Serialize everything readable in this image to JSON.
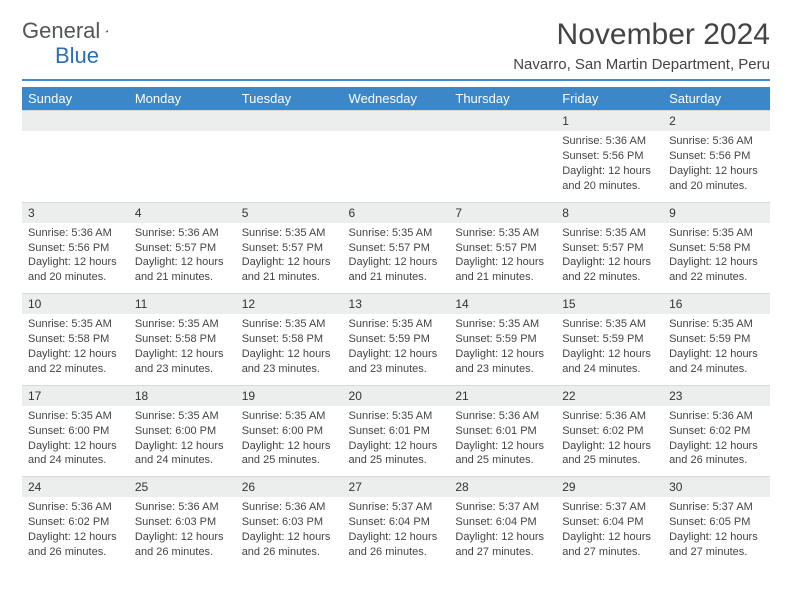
{
  "logo": {
    "text1": "General",
    "text2": "Blue"
  },
  "header": {
    "month_title": "November 2024",
    "location": "Navarro, San Martin Department, Peru"
  },
  "colors": {
    "header_bar": "#3b87c8",
    "header_text": "#ffffff",
    "rule": "#4a88c7",
    "daynum_bg": "#eceded",
    "text": "#444444",
    "logo_gray": "#555555",
    "logo_blue": "#2a6fb5"
  },
  "typography": {
    "month_title_size": 30,
    "location_size": 15,
    "dayhead_size": 13,
    "body_size": 11
  },
  "day_names": [
    "Sunday",
    "Monday",
    "Tuesday",
    "Wednesday",
    "Thursday",
    "Friday",
    "Saturday"
  ],
  "weeks": [
    {
      "nums": [
        "",
        "",
        "",
        "",
        "",
        "1",
        "2"
      ],
      "cells": [
        null,
        null,
        null,
        null,
        null,
        {
          "sunrise": "Sunrise: 5:36 AM",
          "sunset": "Sunset: 5:56 PM",
          "day1": "Daylight: 12 hours",
          "day2": "and 20 minutes."
        },
        {
          "sunrise": "Sunrise: 5:36 AM",
          "sunset": "Sunset: 5:56 PM",
          "day1": "Daylight: 12 hours",
          "day2": "and 20 minutes."
        }
      ]
    },
    {
      "nums": [
        "3",
        "4",
        "5",
        "6",
        "7",
        "8",
        "9"
      ],
      "cells": [
        {
          "sunrise": "Sunrise: 5:36 AM",
          "sunset": "Sunset: 5:56 PM",
          "day1": "Daylight: 12 hours",
          "day2": "and 20 minutes."
        },
        {
          "sunrise": "Sunrise: 5:36 AM",
          "sunset": "Sunset: 5:57 PM",
          "day1": "Daylight: 12 hours",
          "day2": "and 21 minutes."
        },
        {
          "sunrise": "Sunrise: 5:35 AM",
          "sunset": "Sunset: 5:57 PM",
          "day1": "Daylight: 12 hours",
          "day2": "and 21 minutes."
        },
        {
          "sunrise": "Sunrise: 5:35 AM",
          "sunset": "Sunset: 5:57 PM",
          "day1": "Daylight: 12 hours",
          "day2": "and 21 minutes."
        },
        {
          "sunrise": "Sunrise: 5:35 AM",
          "sunset": "Sunset: 5:57 PM",
          "day1": "Daylight: 12 hours",
          "day2": "and 21 minutes."
        },
        {
          "sunrise": "Sunrise: 5:35 AM",
          "sunset": "Sunset: 5:57 PM",
          "day1": "Daylight: 12 hours",
          "day2": "and 22 minutes."
        },
        {
          "sunrise": "Sunrise: 5:35 AM",
          "sunset": "Sunset: 5:58 PM",
          "day1": "Daylight: 12 hours",
          "day2": "and 22 minutes."
        }
      ]
    },
    {
      "nums": [
        "10",
        "11",
        "12",
        "13",
        "14",
        "15",
        "16"
      ],
      "cells": [
        {
          "sunrise": "Sunrise: 5:35 AM",
          "sunset": "Sunset: 5:58 PM",
          "day1": "Daylight: 12 hours",
          "day2": "and 22 minutes."
        },
        {
          "sunrise": "Sunrise: 5:35 AM",
          "sunset": "Sunset: 5:58 PM",
          "day1": "Daylight: 12 hours",
          "day2": "and 23 minutes."
        },
        {
          "sunrise": "Sunrise: 5:35 AM",
          "sunset": "Sunset: 5:58 PM",
          "day1": "Daylight: 12 hours",
          "day2": "and 23 minutes."
        },
        {
          "sunrise": "Sunrise: 5:35 AM",
          "sunset": "Sunset: 5:59 PM",
          "day1": "Daylight: 12 hours",
          "day2": "and 23 minutes."
        },
        {
          "sunrise": "Sunrise: 5:35 AM",
          "sunset": "Sunset: 5:59 PM",
          "day1": "Daylight: 12 hours",
          "day2": "and 23 minutes."
        },
        {
          "sunrise": "Sunrise: 5:35 AM",
          "sunset": "Sunset: 5:59 PM",
          "day1": "Daylight: 12 hours",
          "day2": "and 24 minutes."
        },
        {
          "sunrise": "Sunrise: 5:35 AM",
          "sunset": "Sunset: 5:59 PM",
          "day1": "Daylight: 12 hours",
          "day2": "and 24 minutes."
        }
      ]
    },
    {
      "nums": [
        "17",
        "18",
        "19",
        "20",
        "21",
        "22",
        "23"
      ],
      "cells": [
        {
          "sunrise": "Sunrise: 5:35 AM",
          "sunset": "Sunset: 6:00 PM",
          "day1": "Daylight: 12 hours",
          "day2": "and 24 minutes."
        },
        {
          "sunrise": "Sunrise: 5:35 AM",
          "sunset": "Sunset: 6:00 PM",
          "day1": "Daylight: 12 hours",
          "day2": "and 24 minutes."
        },
        {
          "sunrise": "Sunrise: 5:35 AM",
          "sunset": "Sunset: 6:00 PM",
          "day1": "Daylight: 12 hours",
          "day2": "and 25 minutes."
        },
        {
          "sunrise": "Sunrise: 5:35 AM",
          "sunset": "Sunset: 6:01 PM",
          "day1": "Daylight: 12 hours",
          "day2": "and 25 minutes."
        },
        {
          "sunrise": "Sunrise: 5:36 AM",
          "sunset": "Sunset: 6:01 PM",
          "day1": "Daylight: 12 hours",
          "day2": "and 25 minutes."
        },
        {
          "sunrise": "Sunrise: 5:36 AM",
          "sunset": "Sunset: 6:02 PM",
          "day1": "Daylight: 12 hours",
          "day2": "and 25 minutes."
        },
        {
          "sunrise": "Sunrise: 5:36 AM",
          "sunset": "Sunset: 6:02 PM",
          "day1": "Daylight: 12 hours",
          "day2": "and 26 minutes."
        }
      ]
    },
    {
      "nums": [
        "24",
        "25",
        "26",
        "27",
        "28",
        "29",
        "30"
      ],
      "cells": [
        {
          "sunrise": "Sunrise: 5:36 AM",
          "sunset": "Sunset: 6:02 PM",
          "day1": "Daylight: 12 hours",
          "day2": "and 26 minutes."
        },
        {
          "sunrise": "Sunrise: 5:36 AM",
          "sunset": "Sunset: 6:03 PM",
          "day1": "Daylight: 12 hours",
          "day2": "and 26 minutes."
        },
        {
          "sunrise": "Sunrise: 5:36 AM",
          "sunset": "Sunset: 6:03 PM",
          "day1": "Daylight: 12 hours",
          "day2": "and 26 minutes."
        },
        {
          "sunrise": "Sunrise: 5:37 AM",
          "sunset": "Sunset: 6:04 PM",
          "day1": "Daylight: 12 hours",
          "day2": "and 26 minutes."
        },
        {
          "sunrise": "Sunrise: 5:37 AM",
          "sunset": "Sunset: 6:04 PM",
          "day1": "Daylight: 12 hours",
          "day2": "and 27 minutes."
        },
        {
          "sunrise": "Sunrise: 5:37 AM",
          "sunset": "Sunset: 6:04 PM",
          "day1": "Daylight: 12 hours",
          "day2": "and 27 minutes."
        },
        {
          "sunrise": "Sunrise: 5:37 AM",
          "sunset": "Sunset: 6:05 PM",
          "day1": "Daylight: 12 hours",
          "day2": "and 27 minutes."
        }
      ]
    }
  ]
}
